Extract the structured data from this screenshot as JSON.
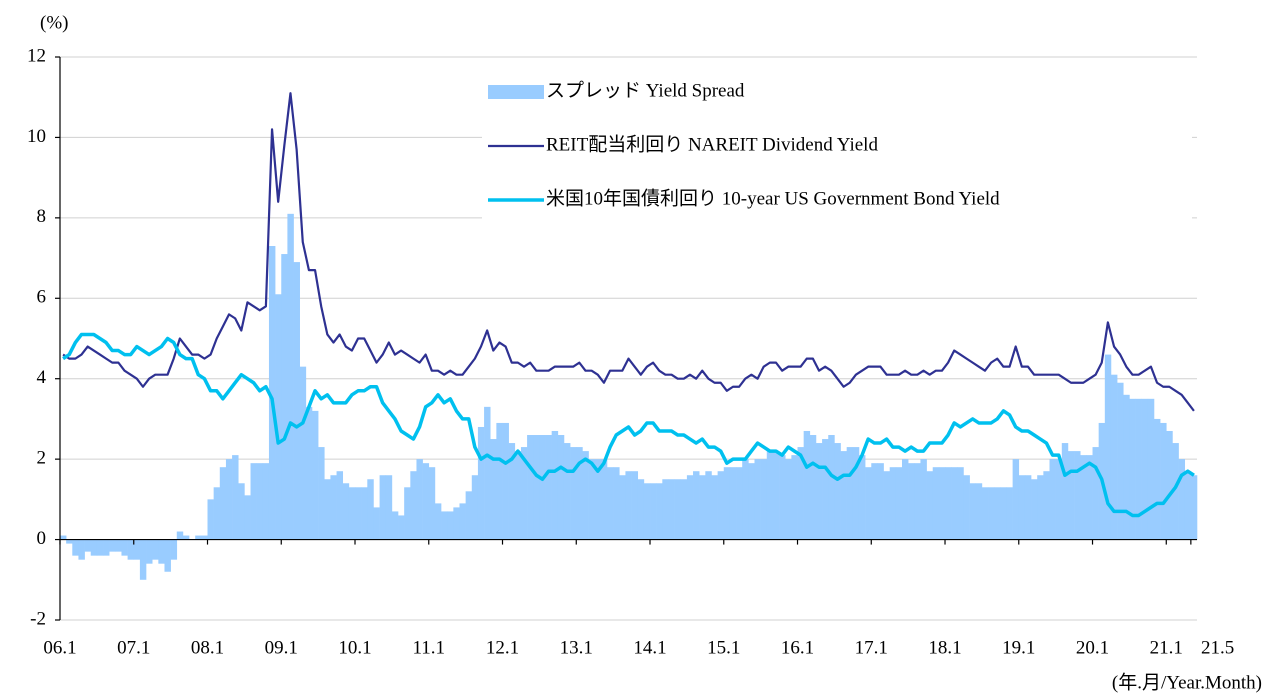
{
  "chart_data": {
    "type": "bar",
    "y_label": "(%)",
    "x_label": "(年.月/Year.Month)",
    "categories": [
      "06.1",
      null,
      null,
      null,
      null,
      null,
      null,
      null,
      null,
      null,
      null,
      null,
      "07.1",
      null,
      null,
      null,
      null,
      null,
      null,
      null,
      null,
      null,
      null,
      null,
      "08.1",
      null,
      null,
      null,
      null,
      null,
      null,
      null,
      null,
      null,
      null,
      null,
      "09.1",
      null,
      null,
      null,
      null,
      null,
      null,
      null,
      null,
      null,
      null,
      null,
      "10.1",
      null,
      null,
      null,
      null,
      null,
      null,
      null,
      null,
      null,
      null,
      null,
      "11.1",
      null,
      null,
      null,
      null,
      null,
      null,
      null,
      null,
      null,
      null,
      null,
      "12.1",
      null,
      null,
      null,
      null,
      null,
      null,
      null,
      null,
      null,
      null,
      null,
      "13.1",
      null,
      null,
      null,
      null,
      null,
      null,
      null,
      null,
      null,
      null,
      null,
      "14.1",
      null,
      null,
      null,
      null,
      null,
      null,
      null,
      null,
      null,
      null,
      null,
      "15.1",
      null,
      null,
      null,
      null,
      null,
      null,
      null,
      null,
      null,
      null,
      null,
      "16.1",
      null,
      null,
      null,
      null,
      null,
      null,
      null,
      null,
      null,
      null,
      null,
      "17.1",
      null,
      null,
      null,
      null,
      null,
      null,
      null,
      null,
      null,
      null,
      null,
      "18.1",
      null,
      null,
      null,
      null,
      null,
      null,
      null,
      null,
      null,
      null,
      null,
      "19.1",
      null,
      null,
      null,
      null,
      null,
      null,
      null,
      null,
      null,
      null,
      null,
      "20.1",
      null,
      null,
      null,
      null,
      null,
      null,
      null,
      null,
      null,
      null,
      null,
      "21.1",
      null,
      null,
      null,
      "21.5"
    ],
    "series": [
      {
        "name": "スプレッド Yield Spread",
        "type": "bar",
        "color": "#99ccff",
        "values": [
          0.1,
          -0.1,
          -0.4,
          -0.5,
          -0.3,
          -0.4,
          -0.4,
          -0.4,
          -0.3,
          -0.3,
          -0.4,
          -0.5,
          -0.5,
          -1.0,
          -0.6,
          -0.5,
          -0.6,
          -0.8,
          -0.5,
          0.2,
          0.1,
          0.0,
          0.1,
          0.1,
          1.0,
          1.3,
          1.8,
          2.0,
          2.1,
          1.4,
          1.1,
          1.9,
          1.9,
          1.9,
          7.3,
          6.1,
          7.1,
          8.1,
          6.9,
          4.3,
          3.3,
          3.2,
          2.3,
          1.5,
          1.6,
          1.7,
          1.4,
          1.3,
          1.3,
          1.3,
          1.5,
          0.8,
          1.6,
          1.6,
          0.7,
          0.6,
          1.3,
          1.7,
          2.0,
          1.9,
          1.8,
          0.9,
          0.7,
          0.7,
          0.8,
          0.9,
          1.2,
          1.6,
          2.8,
          3.3,
          2.5,
          2.9,
          2.9,
          2.4,
          2.2,
          2.3,
          2.6,
          2.6,
          2.6,
          2.6,
          2.7,
          2.6,
          2.4,
          2.3,
          2.3,
          2.2,
          2.0,
          2.0,
          2.0,
          1.8,
          1.8,
          1.6,
          1.7,
          1.7,
          1.5,
          1.4,
          1.4,
          1.4,
          1.5,
          1.5,
          1.5,
          1.5,
          1.6,
          1.7,
          1.6,
          1.7,
          1.6,
          1.7,
          1.8,
          1.8,
          1.8,
          2.0,
          1.9,
          2.0,
          2.0,
          2.2,
          2.2,
          2.1,
          2.0,
          2.1,
          2.3,
          2.7,
          2.6,
          2.4,
          2.5,
          2.6,
          2.4,
          2.2,
          2.3,
          2.3,
          2.1,
          1.8,
          1.9,
          1.9,
          1.7,
          1.8,
          1.8,
          2.0,
          1.9,
          1.9,
          2.0,
          1.7,
          1.8,
          1.8,
          1.8,
          1.8,
          1.8,
          1.6,
          1.4,
          1.4,
          1.3,
          1.3,
          1.3,
          1.3,
          1.3,
          2.0,
          1.6,
          1.6,
          1.5,
          1.6,
          1.7,
          2.0,
          2.0,
          2.4,
          2.2,
          2.2,
          2.1,
          2.1,
          2.3,
          2.9,
          4.6,
          4.1,
          3.9,
          3.6,
          3.5,
          3.5,
          3.5,
          3.5,
          3.0,
          2.9,
          2.7,
          2.4,
          2.0,
          1.7,
          1.6
        ]
      },
      {
        "name": "REIT配当利回り NAREIT Dividend Yield",
        "type": "line",
        "color": "#2e3192",
        "values": [
          4.6,
          4.5,
          4.5,
          4.6,
          4.8,
          4.7,
          4.6,
          4.5,
          4.4,
          4.4,
          4.2,
          4.1,
          4.0,
          3.8,
          4.0,
          4.1,
          4.1,
          4.1,
          4.5,
          5.0,
          4.8,
          4.6,
          4.6,
          4.5,
          4.6,
          5.0,
          5.3,
          5.6,
          5.5,
          5.2,
          5.9,
          5.8,
          5.7,
          5.8,
          10.2,
          8.4,
          9.8,
          11.1,
          9.7,
          7.4,
          6.7,
          6.7,
          5.8,
          5.1,
          4.9,
          5.1,
          4.8,
          4.7,
          5.0,
          5.0,
          4.7,
          4.4,
          4.6,
          4.9,
          4.6,
          4.7,
          4.6,
          4.5,
          4.4,
          4.6,
          4.2,
          4.2,
          4.1,
          4.2,
          4.1,
          4.1,
          4.3,
          4.5,
          4.8,
          5.2,
          4.7,
          4.9,
          4.8,
          4.4,
          4.4,
          4.3,
          4.4,
          4.2,
          4.2,
          4.2,
          4.3,
          4.3,
          4.3,
          4.3,
          4.4,
          4.2,
          4.2,
          4.1,
          3.9,
          4.2,
          4.2,
          4.2,
          4.5,
          4.3,
          4.1,
          4.3,
          4.4,
          4.2,
          4.1,
          4.1,
          4.0,
          4.0,
          4.1,
          4.0,
          4.2,
          4.0,
          3.9,
          3.9,
          3.7,
          3.8,
          3.8,
          4.0,
          4.1,
          4.0,
          4.3,
          4.4,
          4.4,
          4.2,
          4.3,
          4.3,
          4.3,
          4.5,
          4.5,
          4.2,
          4.3,
          4.2,
          4.0,
          3.8,
          3.9,
          4.1,
          4.2,
          4.3,
          4.3,
          4.3,
          4.1,
          4.1,
          4.1,
          4.2,
          4.1,
          4.1,
          4.2,
          4.1,
          4.2,
          4.2,
          4.4,
          4.7,
          4.6,
          4.5,
          4.4,
          4.3,
          4.2,
          4.4,
          4.5,
          4.3,
          4.3,
          4.8,
          4.3,
          4.3,
          4.1,
          4.1,
          4.1,
          4.1,
          4.1,
          4.0,
          3.9,
          3.9,
          3.9,
          4.0,
          4.1,
          4.4,
          5.4,
          4.8,
          4.6,
          4.3,
          4.1,
          4.1,
          4.2,
          4.3,
          3.9,
          3.8,
          3.8,
          3.7,
          3.6,
          3.4,
          3.2
        ]
      },
      {
        "name": "米国10年国債利回り 10-year US Government Bond Yield",
        "type": "line",
        "color": "#00c0ef",
        "values": [
          4.5,
          4.6,
          4.9,
          5.1,
          5.1,
          5.1,
          5.0,
          4.9,
          4.7,
          4.7,
          4.6,
          4.6,
          4.8,
          4.7,
          4.6,
          4.7,
          4.8,
          5.0,
          4.9,
          4.6,
          4.5,
          4.5,
          4.1,
          4.0,
          3.7,
          3.7,
          3.5,
          3.7,
          3.9,
          4.1,
          4.0,
          3.9,
          3.7,
          3.8,
          3.5,
          2.4,
          2.5,
          2.9,
          2.8,
          2.9,
          3.3,
          3.7,
          3.5,
          3.6,
          3.4,
          3.4,
          3.4,
          3.6,
          3.7,
          3.7,
          3.8,
          3.8,
          3.4,
          3.2,
          3.0,
          2.7,
          2.6,
          2.5,
          2.8,
          3.3,
          3.4,
          3.6,
          3.4,
          3.5,
          3.2,
          3.0,
          3.0,
          2.3,
          2.0,
          2.1,
          2.0,
          2.0,
          1.9,
          2.0,
          2.2,
          2.0,
          1.8,
          1.6,
          1.5,
          1.7,
          1.7,
          1.8,
          1.7,
          1.7,
          1.9,
          2.0,
          1.9,
          1.7,
          1.9,
          2.3,
          2.6,
          2.7,
          2.8,
          2.6,
          2.7,
          2.9,
          2.9,
          2.7,
          2.7,
          2.7,
          2.6,
          2.6,
          2.5,
          2.4,
          2.5,
          2.3,
          2.3,
          2.2,
          1.9,
          2.0,
          2.0,
          2.0,
          2.2,
          2.4,
          2.3,
          2.2,
          2.2,
          2.1,
          2.3,
          2.2,
          2.1,
          1.8,
          1.9,
          1.8,
          1.8,
          1.6,
          1.5,
          1.6,
          1.6,
          1.8,
          2.1,
          2.5,
          2.4,
          2.4,
          2.5,
          2.3,
          2.3,
          2.2,
          2.3,
          2.2,
          2.2,
          2.4,
          2.4,
          2.4,
          2.6,
          2.9,
          2.8,
          2.9,
          3.0,
          2.9,
          2.9,
          2.9,
          3.0,
          3.2,
          3.1,
          2.8,
          2.7,
          2.7,
          2.6,
          2.5,
          2.4,
          2.1,
          2.1,
          1.6,
          1.7,
          1.7,
          1.8,
          1.9,
          1.8,
          1.5,
          0.9,
          0.7,
          0.7,
          0.7,
          0.6,
          0.6,
          0.7,
          0.8,
          0.9,
          0.9,
          1.1,
          1.3,
          1.6,
          1.7,
          1.6
        ]
      }
    ],
    "ylim": [
      -2,
      12
    ],
    "yticks": [
      -2,
      0,
      2,
      4,
      6,
      8,
      10,
      12
    ],
    "grid": true,
    "legend": "top-right"
  }
}
